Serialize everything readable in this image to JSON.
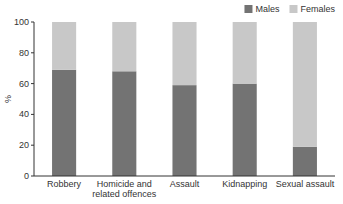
{
  "chart_data": {
    "type": "bar",
    "stacked": true,
    "categories": [
      "Robbery",
      "Homicide and\nrelated offences",
      "Assault",
      "Kidnapping",
      "Sexual assault"
    ],
    "series": [
      {
        "name": "Males",
        "color": "#737373",
        "values": [
          69,
          68,
          59,
          60,
          19
        ]
      },
      {
        "name": "Females",
        "color": "#c8c8c8",
        "values": [
          31,
          32,
          41,
          40,
          81
        ]
      }
    ],
    "y_label": "%",
    "ylim": [
      0,
      100
    ],
    "yticks": [
      0,
      20,
      40,
      60,
      80,
      100
    ],
    "grid": false,
    "legend": "upper right"
  }
}
